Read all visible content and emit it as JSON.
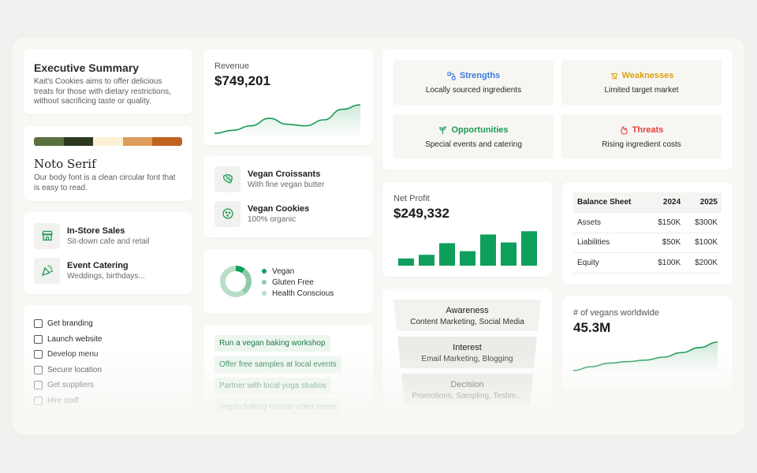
{
  "executive_summary": {
    "title": "Executive Summary",
    "description": "Kait's Cookies aims to offer delicious treats for those with dietary restrictions, without sacrificing taste or quality."
  },
  "brand": {
    "palette": [
      "#5b703f",
      "#2b3a1f",
      "#fbf2d6",
      "#dc9d5c",
      "#c0621f"
    ],
    "font_name": "Noto Serif",
    "font_description": "Our body font is a clean circular font that is easy to read."
  },
  "services": [
    {
      "icon": "storefront-icon",
      "name": "In-Store Sales",
      "subtitle": "Sit-down cafe and retail"
    },
    {
      "icon": "party-popper-icon",
      "name": "Event Catering",
      "subtitle": "Weddings, birthdays..."
    }
  ],
  "checklist": [
    "Get branding",
    "Launch website",
    "Develop menu",
    "Secure location",
    "Get suppliers",
    "Hire staff"
  ],
  "revenue": {
    "label": "Revenue",
    "value": "$749,201"
  },
  "products": [
    {
      "icon": "croissant-icon",
      "name": "Vegan Croissants",
      "subtitle": "With fine vegan butter"
    },
    {
      "icon": "cookie-icon",
      "name": "Vegan Cookies",
      "subtitle": "100% organic"
    }
  ],
  "audience": {
    "segments": [
      {
        "label": "Vegan",
        "color": "#0f9f5d",
        "share": 0.1
      },
      {
        "label": "Gluten Free",
        "color": "#8fcaa8",
        "share": 0.3
      },
      {
        "label": "Health Conscious",
        "color": "#b9dec8",
        "share": 0.6
      }
    ]
  },
  "ideas": [
    "Run a vegan baking workshop",
    "Offer free samples at local events",
    "Partner with local yoga studios",
    "Vegan baking tutorial video series"
  ],
  "swot": {
    "strengths": {
      "title": "Strengths",
      "body": "Locally sourced ingredients",
      "color": "#3b7be0",
      "icon": "strength-icon"
    },
    "weaknesses": {
      "title": "Weaknesses",
      "body": "Limited target market",
      "color": "#d9a30f",
      "icon": "weakness-icon"
    },
    "opportunities": {
      "title": "Opportunities",
      "body": "Special events and catering",
      "color": "#1e9a54",
      "icon": "opportunity-icon"
    },
    "threats": {
      "title": "Threats",
      "body": "Rising ingredient costs",
      "color": "#e0423a",
      "icon": "flame-icon"
    }
  },
  "net_profit": {
    "label": "Net Profit",
    "value": "$249,332"
  },
  "funnel": [
    {
      "stage": "Awareness",
      "channels": "Content Marketing, Social Media"
    },
    {
      "stage": "Interest",
      "channels": "Email Marketing, Blogging"
    },
    {
      "stage": "Decision",
      "channels": "Promotions, Sampling, Testim..."
    }
  ],
  "balance_sheet": {
    "headers": [
      "Balance Sheet",
      "2024",
      "2025"
    ],
    "rows": [
      [
        "Assets",
        "$150K",
        "$300K"
      ],
      [
        "Liabilities",
        "$50K",
        "$100K"
      ],
      [
        "Equity",
        "$100K",
        "$200K"
      ]
    ]
  },
  "vegans": {
    "label": "# of vegans worldwide",
    "value": "45.3M"
  },
  "chart_data": [
    {
      "type": "area",
      "values": [
        0.05,
        0.15,
        0.3,
        0.55,
        0.35,
        0.3,
        0.5,
        0.85,
        1.0
      ],
      "color": "#1e9a54"
    },
    {
      "type": "bar",
      "values": [
        0.2,
        0.3,
        0.62,
        0.4,
        0.86,
        0.64,
        0.95
      ],
      "color": "#0f9f5d"
    },
    {
      "type": "area",
      "values": [
        0.05,
        0.18,
        0.3,
        0.35,
        0.4,
        0.5,
        0.65,
        0.82,
        1.0
      ],
      "color": "#1e9a54"
    }
  ]
}
